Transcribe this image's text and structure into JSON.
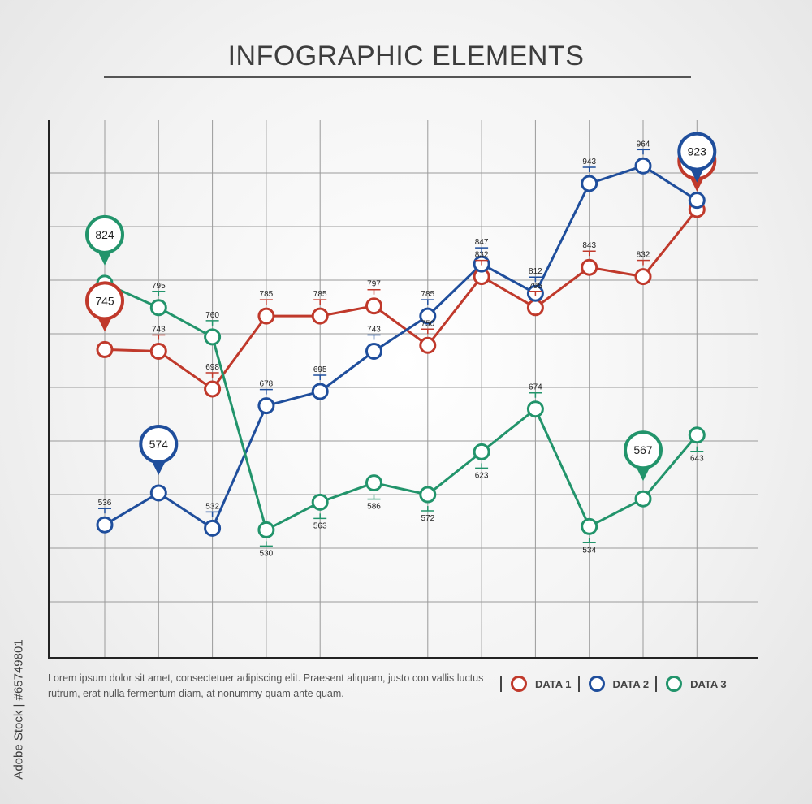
{
  "title": "INFOGRAPHIC ELEMENTS",
  "caption": "Lorem ipsum dolor sit amet,  consectetuer adipiscing elit. Praesent aliquam, justo con vallis  luctus rutrum, erat  nulla fermentum diam, at nonummy quam ante  quam.",
  "watermark": "Adobe Stock | #65749801",
  "legend": [
    {
      "label": "DATA 1",
      "color": "#c0392b"
    },
    {
      "label": "DATA 2",
      "color": "#1f4e9c"
    },
    {
      "label": "DATA 3",
      "color": "#22946b"
    }
  ],
  "chart_data": {
    "type": "line",
    "title": "",
    "xlabel": "",
    "ylabel": "",
    "grid": true,
    "legend_position": "bottom-right",
    "x": [
      1,
      2,
      3,
      4,
      5,
      6,
      7,
      8,
      9,
      10,
      11,
      12
    ],
    "ylim": [
      450,
      1000
    ],
    "series": [
      {
        "name": "DATA 1",
        "color": "#c0392b",
        "values": [
          745,
          743,
          698,
          785,
          785,
          797,
          750,
          832,
          795,
          843,
          832,
          912
        ],
        "label_style": [
          "pin",
          "tick",
          "tick",
          "tick",
          "tick",
          "tick",
          "tick",
          "tick",
          "tick",
          "tick",
          "tick",
          "pin"
        ]
      },
      {
        "name": "DATA 2",
        "color": "#1f4e9c",
        "values": [
          536,
          574,
          532,
          678,
          695,
          743,
          785,
          847,
          812,
          943,
          964,
          923
        ],
        "label_style": [
          "tick",
          "pin",
          "tick",
          "tick",
          "tick",
          "tick",
          "tick",
          "tick",
          "tick",
          "tick",
          "tick",
          "pin"
        ]
      },
      {
        "name": "DATA 3",
        "color": "#22946b",
        "values": [
          824,
          795,
          760,
          530,
          563,
          586,
          572,
          623,
          674,
          534,
          567,
          643
        ],
        "label_style": [
          "pin",
          "tick",
          "tick",
          "tick-below",
          "tick-below",
          "tick-below",
          "tick-below",
          "tick-below",
          "tick",
          "tick-below",
          "pin",
          "tick-below"
        ]
      }
    ]
  }
}
